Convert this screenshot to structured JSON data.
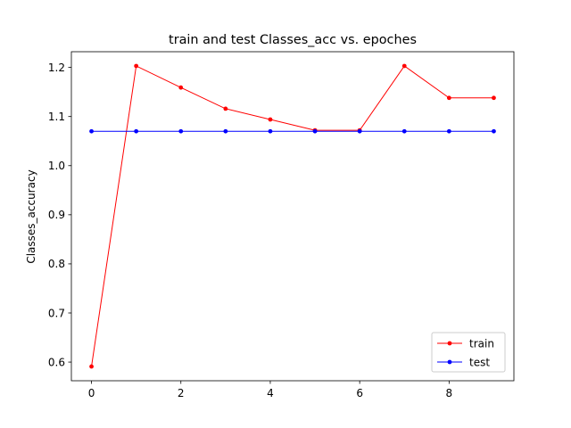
{
  "chart_data": {
    "type": "line",
    "title": "train and test Classes_acc vs. epoches",
    "xlabel": "",
    "ylabel": "Classes_accuracy",
    "x": [
      0,
      1,
      2,
      3,
      4,
      5,
      6,
      7,
      8,
      9
    ],
    "xlim": [
      -0.45,
      9.45
    ],
    "ylim": [
      0.562,
      1.232
    ],
    "xticks": [
      0,
      2,
      4,
      6,
      8
    ],
    "xtick_labels": [
      "0",
      "2",
      "4",
      "6",
      "8"
    ],
    "yticks": [
      0.6,
      0.7,
      0.8,
      0.9,
      1.0,
      1.1,
      1.2
    ],
    "ytick_labels": [
      "0.6",
      "0.7",
      "0.8",
      "0.9",
      "1.0",
      "1.1",
      "1.2"
    ],
    "grid": false,
    "legend_position": "lower-right",
    "series": [
      {
        "name": "train",
        "color": "#ff0000",
        "marker": "circle",
        "values": [
          0.591,
          1.203,
          1.159,
          1.116,
          1.094,
          1.072,
          1.072,
          1.203,
          1.138,
          1.138
        ]
      },
      {
        "name": "test",
        "color": "#0000ff",
        "marker": "circle",
        "values": [
          1.07,
          1.07,
          1.07,
          1.07,
          1.07,
          1.07,
          1.07,
          1.07,
          1.07,
          1.07
        ]
      }
    ]
  }
}
